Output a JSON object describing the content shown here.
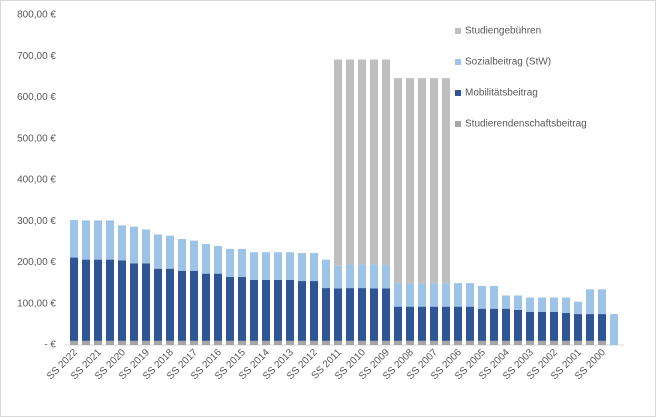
{
  "chart_data": {
    "type": "stacked_bar",
    "categories": [
      "SS 2022",
      null,
      "SS 2021",
      null,
      "SS 2020",
      null,
      "SS 2019",
      null,
      "SS 2018",
      null,
      "SS 2017",
      null,
      "SS 2016",
      null,
      "SS 2015",
      null,
      "SS 2014",
      null,
      "SS 2013",
      null,
      "SS 2012",
      null,
      "SS 2011",
      null,
      "SS 2010",
      null,
      "SS 2009",
      null,
      "SS 2008",
      null,
      "SS 2007",
      null,
      "SS 2006",
      null,
      "SS 2005",
      null,
      "SS 2004",
      null,
      "SS 2003",
      null,
      "SS 2002",
      null,
      "SS 2001",
      null,
      "SS 2000",
      null
    ],
    "series": [
      {
        "name": "Studierendenschaftsbeitrag",
        "color": "#a6a6a6",
        "values": [
          10,
          10,
          10,
          10,
          10,
          10,
          10,
          10,
          10,
          10,
          10,
          10,
          10,
          10,
          10,
          10,
          10,
          10,
          10,
          10,
          10,
          10,
          10,
          10,
          10,
          10,
          10,
          10,
          10,
          10,
          10,
          10,
          10,
          10,
          10,
          10,
          10,
          10,
          10,
          10,
          10,
          10,
          10,
          10,
          10,
          0
        ]
      },
      {
        "name": "Mobilitätsbeitrag",
        "color": "#2f5597",
        "values": [
          202,
          197,
          197,
          197,
          195,
          188,
          188,
          175,
          175,
          170,
          170,
          163,
          163,
          155,
          155,
          148,
          148,
          148,
          148,
          145,
          145,
          128,
          127,
          128,
          128,
          127,
          127,
          83,
          83,
          83,
          83,
          83,
          83,
          83,
          78,
          78,
          78,
          75,
          70,
          70,
          70,
          68,
          65,
          65,
          65,
          0
        ]
      },
      {
        "name": "Sozialbeitrag (StW)",
        "color": "#9dc3e6",
        "values": [
          91,
          95,
          95,
          95,
          85,
          89,
          82,
          83,
          80,
          77,
          73,
          72,
          67,
          68,
          68,
          67,
          67,
          67,
          67,
          68,
          68,
          69,
          55,
          57,
          57,
          58,
          58,
          57,
          57,
          57,
          57,
          57,
          57,
          57,
          55,
          55,
          32,
          35,
          35,
          35,
          35,
          37,
          30,
          60,
          60,
          75
        ]
      },
      {
        "name": "Studiengebühren",
        "color": "#bfbfbf",
        "values": [
          0,
          0,
          0,
          0,
          0,
          0,
          0,
          0,
          0,
          0,
          0,
          0,
          0,
          0,
          0,
          0,
          0,
          0,
          0,
          0,
          0,
          0,
          500,
          497,
          497,
          497,
          497,
          497,
          497,
          497,
          497,
          497,
          0,
          0,
          0,
          0,
          0,
          0,
          0,
          0,
          0,
          0,
          0,
          0,
          0,
          0
        ]
      }
    ],
    "ylim": [
      0,
      800
    ],
    "yticks": [
      {
        "value": 0,
        "label": "-   €"
      },
      {
        "value": 100,
        "label": "100,00 €"
      },
      {
        "value": 200,
        "label": "200,00 €"
      },
      {
        "value": 300,
        "label": "300,00 €"
      },
      {
        "value": 400,
        "label": "400,00 €"
      },
      {
        "value": 500,
        "label": "500,00 €"
      },
      {
        "value": 600,
        "label": "600,00 €"
      },
      {
        "value": 700,
        "label": "700,00 €"
      },
      {
        "value": 800,
        "label": "800,00 €"
      }
    ],
    "legend": "upper right"
  }
}
